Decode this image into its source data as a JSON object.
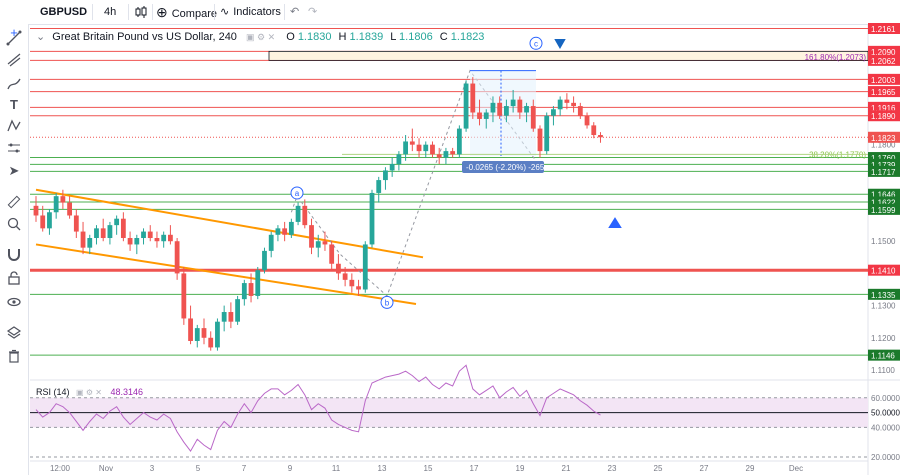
{
  "toolbar": {
    "symbol": "GBPUSD",
    "interval": "4h",
    "compare_label": "Compare",
    "indicators_label": "Indicators"
  },
  "legend": {
    "title": "Great Britain Pound vs US Dollar, 240",
    "o_label": "O",
    "o": "1.1830",
    "h_label": "H",
    "h": "1.1839",
    "l_label": "L",
    "l": "1.1806",
    "c_label": "C",
    "c": "1.1823"
  },
  "rsi": {
    "label": "RSI (14)",
    "value": "48.3146"
  },
  "left_tools": [
    "crosshair-icon",
    "trend-line-icon",
    "fib-icon",
    "brush-icon",
    "text-icon",
    "pattern-icon",
    "forecast-icon",
    "arrow-icon",
    "ruler-icon",
    "zoom-icon",
    "magnet-icon",
    "lock-icon",
    "eye-icon",
    "layers-icon",
    "trash-icon"
  ],
  "colors": {
    "up": "#26a69a",
    "down": "#ef5350",
    "red_level": "#ef5350",
    "green_level": "#4caf50",
    "channel": "#ff9800",
    "rsi": "#ba68c8",
    "rsi_band": "#f3e5f5",
    "blue_label": "#1e88e5"
  },
  "chart_data": {
    "type": "candlestick",
    "title": "Great Britain Pound vs US Dollar, 240",
    "price_scale": {
      "min": 1.1,
      "max": 1.22,
      "ticks": [
        1.11,
        1.12,
        1.13,
        1.15,
        1.18,
        1.21
      ]
    },
    "visible_tick_labels": [
      "1.1100",
      "1.1200",
      "1.1300",
      "1.1500",
      "1.1800"
    ],
    "x_labels": [
      "12:00",
      "Nov",
      "3",
      "5",
      "7",
      "9",
      "11",
      "13",
      "15",
      "17",
      "19",
      "21",
      "23",
      "25",
      "27",
      "29",
      "Dec"
    ],
    "candles": [
      [
        1.161,
        1.164,
        1.156,
        1.158
      ],
      [
        1.158,
        1.161,
        1.153,
        1.154
      ],
      [
        1.154,
        1.16,
        1.152,
        1.159
      ],
      [
        1.159,
        1.165,
        1.157,
        1.164
      ],
      [
        1.164,
        1.166,
        1.16,
        1.162
      ],
      [
        1.162,
        1.164,
        1.157,
        1.158
      ],
      [
        1.158,
        1.16,
        1.151,
        1.153
      ],
      [
        1.153,
        1.156,
        1.146,
        1.148
      ],
      [
        1.148,
        1.152,
        1.146,
        1.151
      ],
      [
        1.151,
        1.155,
        1.149,
        1.154
      ],
      [
        1.154,
        1.157,
        1.15,
        1.151
      ],
      [
        1.151,
        1.156,
        1.149,
        1.155
      ],
      [
        1.155,
        1.158,
        1.152,
        1.157
      ],
      [
        1.157,
        1.159,
        1.15,
        1.151
      ],
      [
        1.151,
        1.153,
        1.147,
        1.149
      ],
      [
        1.149,
        1.152,
        1.146,
        1.151
      ],
      [
        1.151,
        1.154,
        1.149,
        1.153
      ],
      [
        1.153,
        1.155,
        1.15,
        1.151
      ],
      [
        1.151,
        1.153,
        1.148,
        1.15
      ],
      [
        1.15,
        1.153,
        1.148,
        1.152
      ],
      [
        1.152,
        1.155,
        1.149,
        1.15
      ],
      [
        1.15,
        1.151,
        1.138,
        1.14
      ],
      [
        1.14,
        1.142,
        1.124,
        1.126
      ],
      [
        1.126,
        1.13,
        1.118,
        1.119
      ],
      [
        1.119,
        1.124,
        1.117,
        1.123
      ],
      [
        1.123,
        1.126,
        1.118,
        1.12
      ],
      [
        1.12,
        1.122,
        1.116,
        1.117
      ],
      [
        1.117,
        1.126,
        1.116,
        1.125
      ],
      [
        1.125,
        1.13,
        1.122,
        1.128
      ],
      [
        1.128,
        1.131,
        1.123,
        1.125
      ],
      [
        1.125,
        1.133,
        1.124,
        1.132
      ],
      [
        1.132,
        1.138,
        1.13,
        1.137
      ],
      [
        1.137,
        1.14,
        1.131,
        1.133
      ],
      [
        1.133,
        1.142,
        1.132,
        1.141
      ],
      [
        1.141,
        1.148,
        1.14,
        1.147
      ],
      [
        1.147,
        1.153,
        1.145,
        1.152
      ],
      [
        1.152,
        1.155,
        1.15,
        1.154
      ],
      [
        1.154,
        1.156,
        1.15,
        1.152
      ],
      [
        1.152,
        1.157,
        1.151,
        1.156
      ],
      [
        1.156,
        1.162,
        1.155,
        1.161
      ],
      [
        1.161,
        1.163,
        1.154,
        1.155
      ],
      [
        1.155,
        1.157,
        1.146,
        1.148
      ],
      [
        1.148,
        1.152,
        1.145,
        1.15
      ],
      [
        1.15,
        1.153,
        1.147,
        1.149
      ],
      [
        1.149,
        1.15,
        1.141,
        1.143
      ],
      [
        1.143,
        1.146,
        1.138,
        1.14
      ],
      [
        1.14,
        1.142,
        1.136,
        1.138
      ],
      [
        1.138,
        1.14,
        1.134,
        1.136
      ],
      [
        1.136,
        1.138,
        1.133,
        1.135
      ],
      [
        1.135,
        1.15,
        1.134,
        1.149
      ],
      [
        1.149,
        1.166,
        1.148,
        1.165
      ],
      [
        1.165,
        1.17,
        1.162,
        1.169
      ],
      [
        1.169,
        1.173,
        1.166,
        1.172
      ],
      [
        1.172,
        1.176,
        1.17,
        1.174
      ],
      [
        1.174,
        1.178,
        1.172,
        1.177
      ],
      [
        1.177,
        1.183,
        1.175,
        1.181
      ],
      [
        1.181,
        1.185,
        1.178,
        1.18
      ],
      [
        1.18,
        1.182,
        1.176,
        1.178
      ],
      [
        1.178,
        1.181,
        1.176,
        1.18
      ],
      [
        1.18,
        1.181,
        1.176,
        1.177
      ],
      [
        1.177,
        1.179,
        1.174,
        1.176
      ],
      [
        1.176,
        1.179,
        1.174,
        1.178
      ],
      [
        1.178,
        1.179,
        1.176,
        1.177
      ],
      [
        1.177,
        1.186,
        1.176,
        1.185
      ],
      [
        1.185,
        1.2,
        1.184,
        1.199
      ],
      [
        1.199,
        1.201,
        1.188,
        1.19
      ],
      [
        1.19,
        1.194,
        1.186,
        1.188
      ],
      [
        1.188,
        1.191,
        1.185,
        1.19
      ],
      [
        1.19,
        1.195,
        1.187,
        1.193
      ],
      [
        1.193,
        1.195,
        1.188,
        1.189
      ],
      [
        1.189,
        1.194,
        1.187,
        1.192
      ],
      [
        1.192,
        1.197,
        1.19,
        1.194
      ],
      [
        1.194,
        1.195,
        1.188,
        1.19
      ],
      [
        1.19,
        1.193,
        1.187,
        1.192
      ],
      [
        1.192,
        1.194,
        1.184,
        1.185
      ],
      [
        1.185,
        1.186,
        1.176,
        1.178
      ],
      [
        1.178,
        1.19,
        1.177,
        1.189
      ],
      [
        1.189,
        1.192,
        1.186,
        1.191
      ],
      [
        1.191,
        1.195,
        1.189,
        1.194
      ],
      [
        1.194,
        1.196,
        1.191,
        1.193
      ],
      [
        1.193,
        1.195,
        1.19,
        1.192
      ],
      [
        1.192,
        1.193,
        1.188,
        1.189
      ],
      [
        1.189,
        1.19,
        1.185,
        1.186
      ],
      [
        1.186,
        1.187,
        1.182,
        1.183
      ],
      [
        1.183,
        1.1839,
        1.1806,
        1.1823
      ]
    ],
    "levels": [
      {
        "price": 1.2161,
        "label": "1.2161",
        "color": "red"
      },
      {
        "price": 1.209,
        "label": "1.2090",
        "color": "red"
      },
      {
        "price": 1.2062,
        "label": "1.2062",
        "color": "red"
      },
      {
        "price": 1.2003,
        "label": "1.2003",
        "color": "red"
      },
      {
        "price": 1.1965,
        "label": "1.1965",
        "color": "red"
      },
      {
        "price": 1.1916,
        "label": "1.1916",
        "color": "red"
      },
      {
        "price": 1.189,
        "label": "1.1890",
        "color": "red"
      },
      {
        "price": 1.176,
        "label": "1.1760",
        "color": "green"
      },
      {
        "price": 1.1739,
        "label": "1.1739",
        "color": "green"
      },
      {
        "price": 1.1717,
        "label": "1.1717",
        "color": "green"
      },
      {
        "price": 1.1646,
        "label": "1.1646",
        "color": "green"
      },
      {
        "price": 1.1622,
        "label": "1.1622",
        "color": "green"
      },
      {
        "price": 1.1599,
        "label": "1.1599",
        "color": "green"
      },
      {
        "price": 1.141,
        "label": "1.1410",
        "color": "red",
        "thick": true
      },
      {
        "price": 1.1335,
        "label": "1.1335",
        "color": "green"
      },
      {
        "price": 1.1146,
        "label": "1.1146",
        "color": "green"
      }
    ],
    "current_price": {
      "price": 1.1823,
      "label": "1.1823"
    },
    "fib_labels": [
      {
        "text": "161.80%(1.2073)",
        "price": 1.2073,
        "color": "#9c27b0"
      },
      {
        "text": "38.20%(1.1770)",
        "price": 1.177,
        "color": "#8bc34a"
      }
    ],
    "measure_label": "-0.0265 (-2.20%) -265",
    "wave_labels": [
      "a",
      "b",
      "c"
    ],
    "rsi": {
      "name": "RSI (14)",
      "last": 48.3146,
      "levels": [
        {
          "value": 60,
          "label": "60.0000"
        },
        {
          "value": 50,
          "label": "50.0000"
        },
        {
          "value": 40,
          "label": "40.0000"
        },
        {
          "value": 20,
          "label": "20.0000"
        }
      ],
      "values": [
        52,
        47,
        50,
        56,
        54,
        50,
        44,
        38,
        44,
        49,
        46,
        51,
        54,
        47,
        42,
        46,
        50,
        47,
        45,
        49,
        46,
        37,
        30,
        24,
        32,
        28,
        25,
        38,
        44,
        40,
        49,
        56,
        50,
        58,
        63,
        66,
        66,
        62,
        65,
        69,
        62,
        52,
        56,
        53,
        45,
        42,
        40,
        38,
        37,
        58,
        70,
        72,
        74,
        75,
        76,
        78,
        75,
        71,
        74,
        69,
        66,
        70,
        68,
        78,
        82,
        66,
        62,
        65,
        68,
        60,
        64,
        67,
        61,
        65,
        56,
        48,
        60,
        63,
        66,
        64,
        62,
        58,
        55,
        51,
        48.3
      ]
    }
  }
}
